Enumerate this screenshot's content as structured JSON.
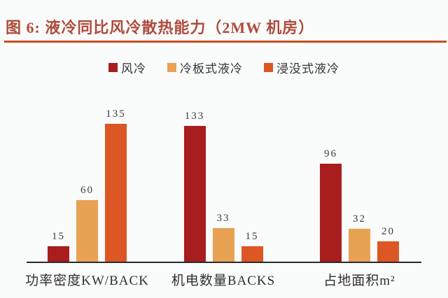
{
  "title": "图 6:  液冷同比风冷散热能力（2MW 机房）",
  "colors": {
    "title_text": "#AE4C3B",
    "title_rule": "#C64E22",
    "axis_line": "#2B2B2B",
    "label_text": "#333333",
    "background": "#FAFBFB",
    "series_air": "#A81D1D",
    "series_coldplate": "#E8A254",
    "series_immersion": "#DC5724"
  },
  "legend": [
    {
      "label": "风冷",
      "color": "#A81D1D"
    },
    {
      "label": "冷板式液冷",
      "color": "#E8A254"
    },
    {
      "label": "浸没式液冷",
      "color": "#DC5724"
    }
  ],
  "chart_data": {
    "type": "bar",
    "title": "图 6: 液冷同比风冷散热能力（2MW 机房）",
    "categories": [
      "功率密度KW/BACK",
      "机电数量BACKS",
      "占地面积m²"
    ],
    "series": [
      {
        "name": "风冷",
        "color": "#A81D1D",
        "values": [
          15,
          133,
          96
        ]
      },
      {
        "name": "冷板式液冷",
        "color": "#E8A254",
        "values": [
          60,
          33,
          32
        ]
      },
      {
        "name": "浸没式液冷",
        "color": "#DC5724",
        "values": [
          135,
          15,
          20
        ]
      }
    ],
    "xlabel": "",
    "ylabel": "",
    "ylim": [
      0,
      135
    ],
    "grid": false,
    "y_axis_visible": false,
    "legend_position": "top",
    "value_labels": true
  }
}
